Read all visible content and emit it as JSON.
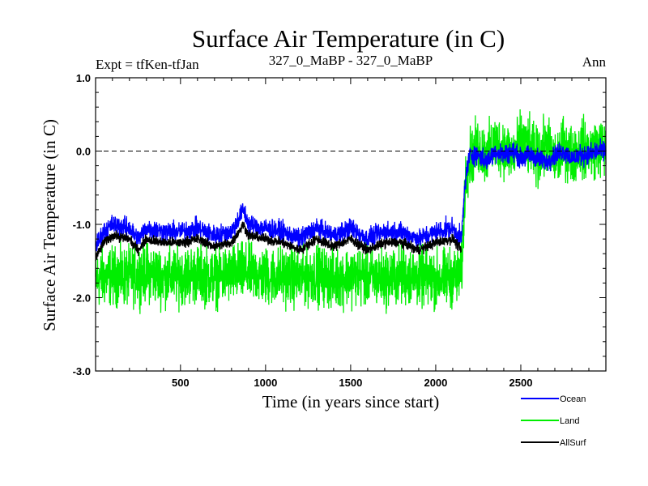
{
  "chart_data": {
    "type": "line",
    "title": "Surface Air Temperature (in C)",
    "subtitle_left": "Expt = tfKen-tfJan",
    "subtitle_center": "327_0_MaBP - 327_0_MaBP",
    "subtitle_right": "Ann",
    "xlabel": "Time (in years since start)",
    "ylabel": "Surface Air Temperature (in C)",
    "xlim": [
      1,
      3000
    ],
    "ylim": [
      -3.0,
      1.0
    ],
    "x_ticks": [
      500,
      1000,
      1500,
      2000,
      2500
    ],
    "x_tick_labels": [
      "500",
      "1000",
      "1500",
      "2000",
      "2500"
    ],
    "y_ticks": [
      -3.0,
      -2.0,
      -1.0,
      0.0,
      1.0
    ],
    "y_tick_labels": [
      "-3.0",
      "-2.0",
      "-1.0",
      "0.0",
      "1.0"
    ],
    "reference_line": 0.0,
    "grid": false,
    "legend_position": "bottom-right",
    "series": [
      {
        "name": "Land",
        "color": "#00ee00",
        "x": [
          1,
          100,
          200,
          300,
          400,
          500,
          600,
          700,
          800,
          900,
          1000,
          1100,
          1200,
          1300,
          1400,
          1500,
          1600,
          1700,
          1800,
          1900,
          2000,
          2100,
          2150,
          2160,
          2170,
          2180,
          2200,
          2250,
          2300,
          2350,
          2400,
          2450,
          2500,
          2550,
          2600,
          2650,
          2700,
          2750,
          2800,
          2850,
          2900,
          2950,
          3000
        ],
        "y": [
          -1.75,
          -1.7,
          -1.72,
          -1.65,
          -1.72,
          -1.7,
          -1.68,
          -1.72,
          -1.68,
          -1.65,
          -1.72,
          -1.7,
          -1.73,
          -1.68,
          -1.75,
          -1.7,
          -1.72,
          -1.74,
          -1.7,
          -1.72,
          -1.75,
          -1.72,
          -1.7,
          -1.3,
          -0.6,
          -0.25,
          -0.1,
          0.05,
          -0.05,
          0.1,
          0.05,
          -0.05,
          0.12,
          0.05,
          -0.1,
          0.1,
          -0.15,
          0.05,
          -0.05,
          0.05,
          0.0,
          0.05,
          0.02
        ],
        "spread": 0.35
      },
      {
        "name": "Ocean",
        "color": "#0000ff",
        "x": [
          1,
          50,
          100,
          200,
          250,
          300,
          400,
          500,
          600,
          700,
          800,
          870,
          900,
          1000,
          1100,
          1200,
          1300,
          1400,
          1500,
          1600,
          1700,
          1800,
          1900,
          2000,
          2100,
          2150,
          2160,
          2170,
          2180,
          2200,
          2250,
          2300,
          2350,
          2400,
          2450,
          2500,
          2550,
          2600,
          2650,
          2700,
          2750,
          2800,
          2850,
          2900,
          2950,
          3000
        ],
        "y": [
          -1.3,
          -1.1,
          -1.0,
          -1.05,
          -1.2,
          -1.05,
          -1.1,
          -1.1,
          -1.05,
          -1.15,
          -1.1,
          -0.8,
          -1.0,
          -1.05,
          -1.1,
          -1.2,
          -1.05,
          -1.15,
          -1.05,
          -1.2,
          -1.1,
          -1.1,
          -1.2,
          -1.1,
          -1.05,
          -1.2,
          -0.9,
          -0.5,
          -0.3,
          -0.05,
          -0.05,
          -0.15,
          0.0,
          -0.05,
          0.0,
          -0.1,
          -0.05,
          -0.1,
          -0.15,
          -0.05,
          0.0,
          -0.1,
          -0.05,
          -0.05,
          0.0,
          0.0
        ],
        "spread": 0.12
      },
      {
        "name": "AllSurf",
        "color": "#000000",
        "x": [
          1,
          50,
          100,
          200,
          250,
          300,
          400,
          500,
          600,
          700,
          800,
          870,
          900,
          1000,
          1100,
          1200,
          1300,
          1400,
          1500,
          1600,
          1700,
          1800,
          1900,
          2000,
          2100,
          2150
        ],
        "y": [
          -1.45,
          -1.25,
          -1.15,
          -1.2,
          -1.35,
          -1.2,
          -1.25,
          -1.25,
          -1.2,
          -1.3,
          -1.25,
          -1.0,
          -1.15,
          -1.2,
          -1.25,
          -1.35,
          -1.2,
          -1.3,
          -1.2,
          -1.35,
          -1.25,
          -1.25,
          -1.35,
          -1.25,
          -1.2,
          -1.35
        ],
        "spread": 0.06
      }
    ]
  }
}
